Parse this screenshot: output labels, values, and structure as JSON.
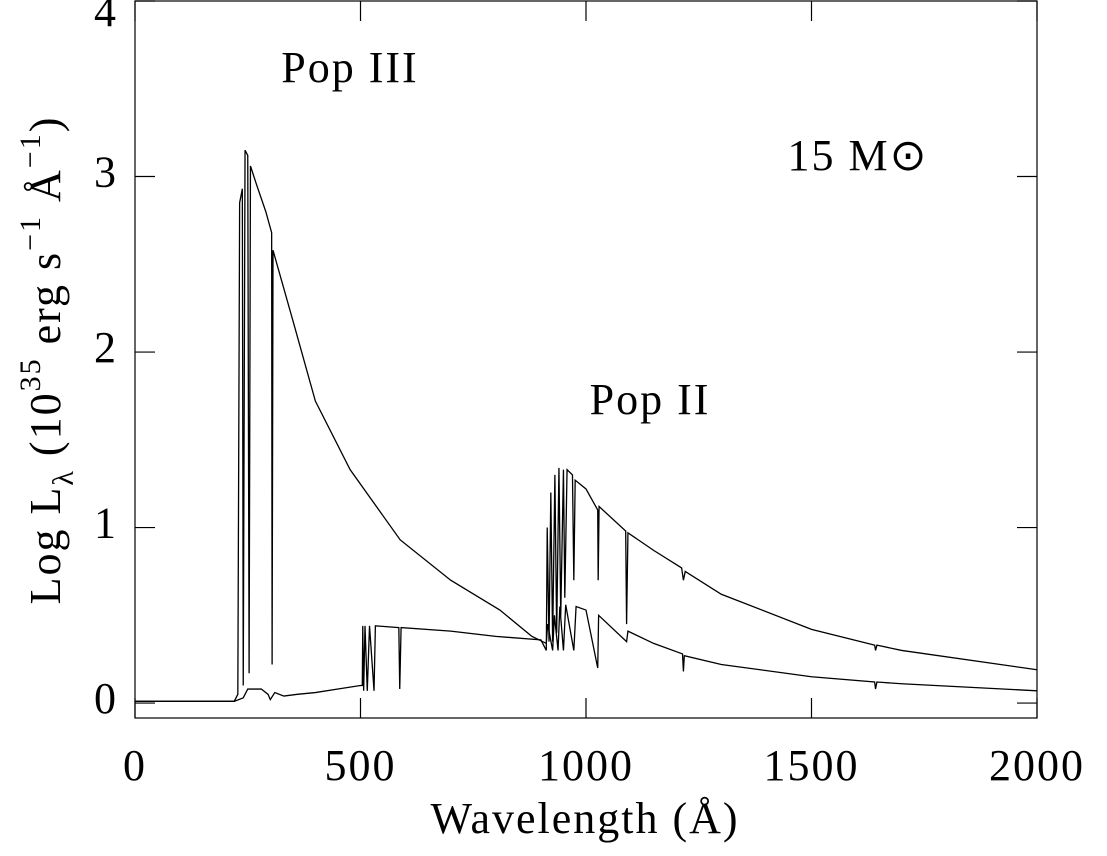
{
  "chart_data": {
    "type": "line",
    "xlabel": "Wavelength (Å)",
    "ylabel": [
      "Log L",
      "λ",
      " (10",
      "35",
      " erg s",
      "−1",
      " Å",
      "−1",
      ")"
    ],
    "annotation": "15 M⊙",
    "xlim": [
      0,
      2000
    ],
    "xticks": [
      0,
      500,
      1000,
      1500,
      2000
    ],
    "ylim": [
      -0.085,
      4
    ],
    "yticks": [
      0,
      1,
      2,
      3,
      4
    ],
    "color": "#000000",
    "series": [
      {
        "name": "Pop III",
        "x": [
          0,
          220,
          228,
          232,
          238,
          240,
          244,
          250,
          253,
          256,
          270,
          290,
          303,
          304,
          306,
          350,
          400,
          477,
          588,
          700,
          809,
          880,
          912,
          915,
          926,
          930,
          938,
          942,
          950,
          955,
          973,
          978,
          1000,
          1026,
          1028,
          1090,
          1093,
          1150,
          1214,
          1216,
          1218,
          1300,
          1500,
          1640,
          1642,
          1645,
          1700,
          2000
        ],
        "values": [
          0.01,
          0.01,
          0.05,
          2.85,
          2.93,
          0.1,
          3.15,
          3.12,
          0.17,
          3.06,
          2.95,
          2.8,
          2.68,
          0.22,
          2.58,
          2.18,
          1.72,
          1.33,
          0.93,
          0.7,
          0.53,
          0.38,
          0.34,
          0.45,
          0.3,
          0.5,
          0.3,
          0.55,
          0.3,
          0.56,
          0.3,
          0.55,
          0.53,
          0.2,
          0.5,
          0.35,
          0.41,
          0.34,
          0.28,
          0.18,
          0.27,
          0.22,
          0.15,
          0.12,
          0.08,
          0.12,
          0.11,
          0.07
        ]
      },
      {
        "name": "Pop II",
        "x": [
          0,
          220,
          240,
          250,
          280,
          295,
          300,
          310,
          330,
          360,
          400,
          450,
          500,
          504,
          505,
          507,
          510,
          515,
          520,
          530,
          533,
          585,
          587,
          590,
          700,
          800,
          900,
          912,
          914,
          918,
          922,
          926,
          931,
          935,
          940,
          944,
          950,
          953,
          958,
          970,
          973,
          976,
          1000,
          1026,
          1027,
          1029,
          1088,
          1090,
          1093,
          1150,
          1212,
          1216,
          1220,
          1300,
          1500,
          1640,
          1642,
          1645,
          1700,
          2000
        ],
        "values": [
          0.01,
          0.01,
          0.03,
          0.08,
          0.08,
          0.05,
          0.02,
          0.06,
          0.04,
          0.05,
          0.06,
          0.08,
          0.1,
          0.1,
          0.44,
          0.07,
          0.44,
          0.07,
          0.44,
          0.07,
          0.44,
          0.43,
          0.08,
          0.43,
          0.41,
          0.38,
          0.36,
          0.3,
          1.0,
          0.35,
          1.2,
          0.35,
          1.3,
          0.4,
          1.34,
          0.5,
          1.33,
          0.6,
          1.33,
          1.3,
          0.7,
          1.27,
          1.22,
          1.1,
          0.7,
          1.12,
          0.98,
          0.45,
          0.97,
          0.87,
          0.77,
          0.7,
          0.75,
          0.62,
          0.42,
          0.33,
          0.3,
          0.33,
          0.3,
          0.19
        ]
      }
    ]
  }
}
